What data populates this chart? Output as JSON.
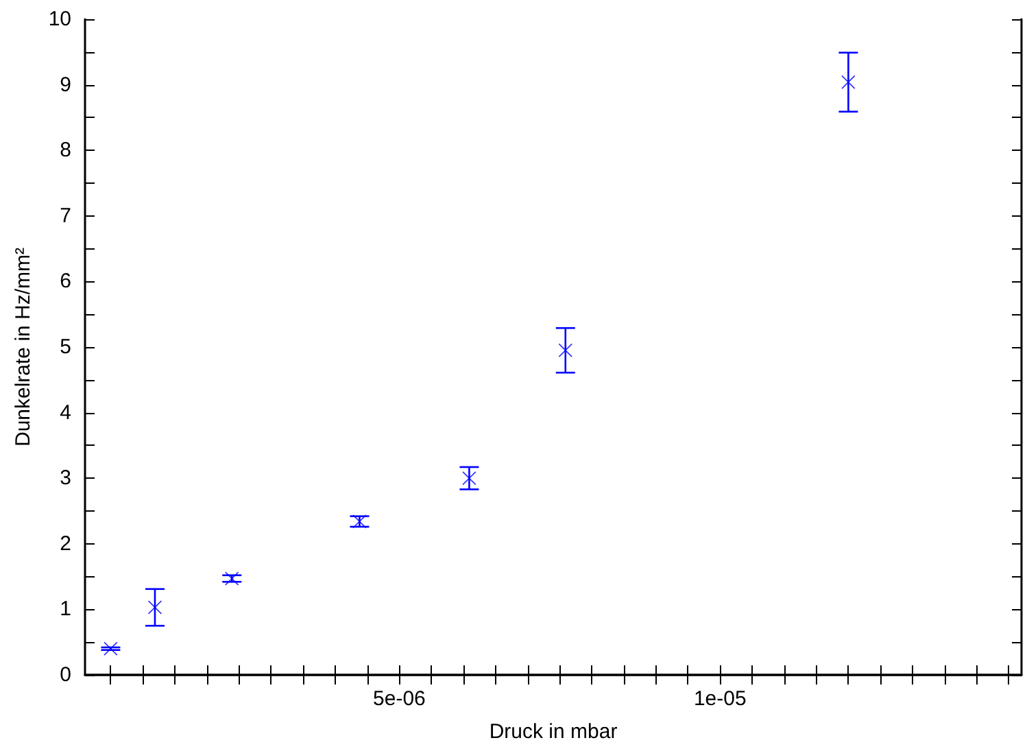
{
  "chart_data": {
    "type": "scatter",
    "xlabel": "Druck in mbar",
    "ylabel": "Dunkelrate in Hz/mm²",
    "x": [
      5e-07,
      1.19e-06,
      2.39e-06,
      4.38e-06,
      6.09e-06,
      7.59e-06,
      1.2e-05
    ],
    "series": [
      {
        "color": "#0000ff",
        "values": [
          0.4,
          1.03,
          1.47,
          2.34,
          3.0,
          4.95,
          9.04
        ],
        "errors": [
          0.02,
          0.28,
          0.05,
          0.08,
          0.17,
          0.34,
          0.45
        ]
      }
    ],
    "marker": "cross",
    "grid": false,
    "xlim": [
      1e-07,
      1.47e-05
    ],
    "xticks": [
      {
        "value": 5e-07,
        "label": null
      },
      {
        "value": 1e-06,
        "label": null
      },
      {
        "value": 1.5e-06,
        "label": null
      },
      {
        "value": 2e-06,
        "label": null
      },
      {
        "value": 2.5e-06,
        "label": null
      },
      {
        "value": 3e-06,
        "label": null
      },
      {
        "value": 3.5e-06,
        "label": null
      },
      {
        "value": 4e-06,
        "label": null
      },
      {
        "value": 4.5e-06,
        "label": null
      },
      {
        "value": 5e-06,
        "label": "5e-06"
      },
      {
        "value": 5.5e-06,
        "label": null
      },
      {
        "value": 6e-06,
        "label": null
      },
      {
        "value": 6.5e-06,
        "label": null
      },
      {
        "value": 7e-06,
        "label": null
      },
      {
        "value": 7.5e-06,
        "label": null
      },
      {
        "value": 8e-06,
        "label": null
      },
      {
        "value": 8.5e-06,
        "label": null
      },
      {
        "value": 9e-06,
        "label": null
      },
      {
        "value": 9.5e-06,
        "label": null
      },
      {
        "value": 1e-05,
        "label": "1e-05"
      },
      {
        "value": 1.05e-05,
        "label": null
      },
      {
        "value": 1.1e-05,
        "label": null
      },
      {
        "value": 1.15e-05,
        "label": null
      },
      {
        "value": 1.2e-05,
        "label": null
      },
      {
        "value": 1.25e-05,
        "label": null
      },
      {
        "value": 1.3e-05,
        "label": null
      },
      {
        "value": 1.35e-05,
        "label": null
      },
      {
        "value": 1.4e-05,
        "label": null
      },
      {
        "value": 1.45e-05,
        "label": null
      }
    ],
    "ylim": [
      0,
      10
    ],
    "yticks": [
      0,
      {
        "value": 0.5,
        "label": null
      },
      1,
      {
        "value": 1.5,
        "label": null
      },
      2,
      {
        "value": 2.5,
        "label": null
      },
      3,
      {
        "value": 3.5,
        "label": null
      },
      4,
      {
        "value": 4.5,
        "label": null
      },
      5,
      {
        "value": 5.5,
        "label": null
      },
      6,
      {
        "value": 6.5,
        "label": null
      },
      7,
      {
        "value": 7.5,
        "label": null
      },
      8,
      {
        "value": 8.5,
        "label": null
      },
      9,
      {
        "value": 9.5,
        "label": null
      },
      10
    ]
  }
}
